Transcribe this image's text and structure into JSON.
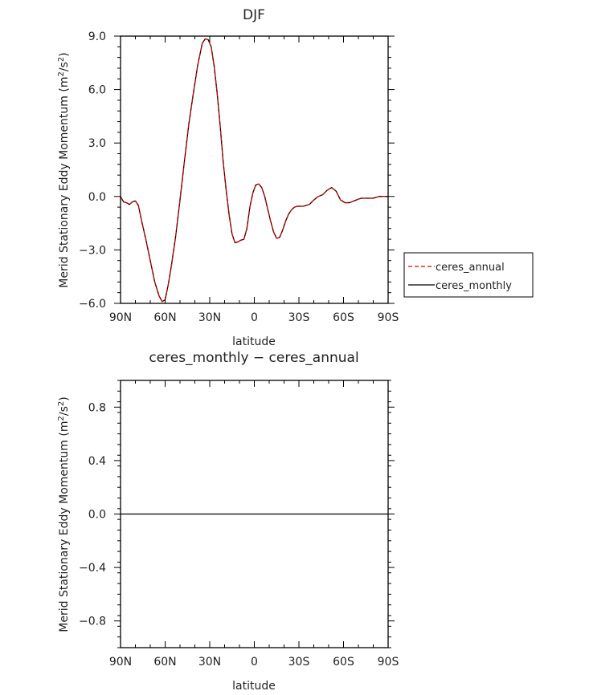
{
  "chart_data": [
    {
      "type": "line",
      "title": "DJF",
      "xlabel": "latitude",
      "ylabel": "Merid Stationary Eddy Momentum (m2/s2)",
      "ylabel_prefix": "Merid Stationary Eddy Momentum (m",
      "ylabel_mid": "/s",
      "ylabel_suffix": ")",
      "ylabel_sup1": "2",
      "ylabel_sup2": "2",
      "xlim": [
        90,
        -90
      ],
      "ylim": [
        -6,
        9
      ],
      "xticks": [
        90,
        60,
        30,
        0,
        -30,
        -60,
        -90
      ],
      "xtick_labels": [
        "90N",
        "60N",
        "30N",
        "0",
        "30S",
        "60S",
        "90S"
      ],
      "yticks": [
        -6,
        -3,
        0,
        3,
        6,
        9
      ],
      "ytick_labels": [
        "−6.0",
        "−3.0",
        "0.0",
        "3.0",
        "6.0",
        "9.0"
      ],
      "legend_position": "right",
      "x": [
        90,
        88,
        86,
        84,
        82,
        80,
        78,
        76,
        73,
        70,
        67,
        64,
        62,
        60,
        58,
        56,
        53,
        50,
        47,
        44,
        41,
        38,
        35,
        33,
        31,
        29,
        27,
        25,
        23,
        21,
        19,
        17,
        15,
        13,
        11,
        9,
        7,
        5,
        3,
        1,
        -1,
        -3,
        -5,
        -7,
        -9,
        -11,
        -13,
        -15,
        -17,
        -19,
        -21,
        -23,
        -25,
        -27,
        -29,
        -31,
        -33,
        -35,
        -37,
        -40,
        -43,
        -46,
        -49,
        -52,
        -55,
        -58,
        -61,
        -64,
        -67,
        -70,
        -72,
        -74,
        -76,
        -78,
        -80,
        -82,
        -84,
        -86,
        -88,
        -90
      ],
      "series": [
        {
          "name": "ceres_annual",
          "color": "#e00000",
          "dash": "dashed",
          "values": [
            0.0,
            -0.3,
            -0.35,
            -0.45,
            -0.3,
            -0.25,
            -0.5,
            -1.3,
            -2.4,
            -3.6,
            -4.8,
            -5.6,
            -5.9,
            -5.8,
            -5.0,
            -4.0,
            -2.3,
            -0.2,
            2.0,
            4.1,
            5.8,
            7.4,
            8.6,
            8.85,
            8.8,
            8.4,
            7.3,
            5.8,
            4.0,
            2.0,
            0.4,
            -1.0,
            -2.1,
            -2.6,
            -2.55,
            -2.45,
            -2.4,
            -1.8,
            -0.6,
            0.2,
            0.65,
            0.7,
            0.5,
            0.0,
            -0.7,
            -1.4,
            -2.0,
            -2.35,
            -2.3,
            -1.9,
            -1.4,
            -1.0,
            -0.75,
            -0.6,
            -0.55,
            -0.55,
            -0.55,
            -0.5,
            -0.45,
            -0.2,
            0.0,
            0.1,
            0.35,
            0.5,
            0.3,
            -0.2,
            -0.35,
            -0.35,
            -0.25,
            -0.15,
            -0.1,
            -0.1,
            -0.1,
            -0.1,
            -0.1,
            -0.05,
            0.0,
            0.0,
            0.0,
            0.0
          ]
        },
        {
          "name": "ceres_monthly",
          "color": "#000000",
          "dash": "solid",
          "values": [
            0.0,
            -0.3,
            -0.35,
            -0.45,
            -0.3,
            -0.25,
            -0.5,
            -1.3,
            -2.4,
            -3.6,
            -4.8,
            -5.6,
            -5.9,
            -5.8,
            -5.0,
            -4.0,
            -2.3,
            -0.2,
            2.0,
            4.1,
            5.8,
            7.4,
            8.6,
            8.85,
            8.8,
            8.4,
            7.3,
            5.8,
            4.0,
            2.0,
            0.4,
            -1.0,
            -2.1,
            -2.6,
            -2.55,
            -2.45,
            -2.4,
            -1.8,
            -0.6,
            0.2,
            0.65,
            0.7,
            0.5,
            0.0,
            -0.7,
            -1.4,
            -2.0,
            -2.35,
            -2.3,
            -1.9,
            -1.4,
            -1.0,
            -0.75,
            -0.6,
            -0.55,
            -0.55,
            -0.55,
            -0.5,
            -0.45,
            -0.2,
            0.0,
            0.1,
            0.35,
            0.5,
            0.3,
            -0.2,
            -0.35,
            -0.35,
            -0.25,
            -0.15,
            -0.1,
            -0.1,
            -0.1,
            -0.1,
            -0.1,
            -0.05,
            0.0,
            0.0,
            0.0,
            0.0
          ]
        }
      ]
    },
    {
      "type": "line",
      "title": "ceres_monthly − ceres_annual",
      "xlabel": "latitude",
      "ylabel": "Merid Stationary Eddy Momentum (m2/s2)",
      "ylabel_prefix": "Merid Stationary Eddy Momentum (m",
      "ylabel_mid": "/s",
      "ylabel_suffix": ")",
      "ylabel_sup1": "2",
      "ylabel_sup2": "2",
      "xlim": [
        90,
        -90
      ],
      "ylim": [
        -1,
        1
      ],
      "xticks": [
        90,
        60,
        30,
        0,
        -30,
        -60,
        -90
      ],
      "xtick_labels": [
        "90N",
        "60N",
        "30N",
        "0",
        "30S",
        "60S",
        "90S"
      ],
      "yticks": [
        -0.8,
        -0.4,
        0.0,
        0.4,
        0.8
      ],
      "ytick_labels": [
        "−0.8",
        "−0.4",
        "0.0",
        "0.4",
        "0.8"
      ],
      "x": [
        90,
        -90
      ],
      "series": [
        {
          "color": "#000000",
          "dash": "solid",
          "values": [
            0.0,
            0.0
          ]
        }
      ]
    }
  ]
}
